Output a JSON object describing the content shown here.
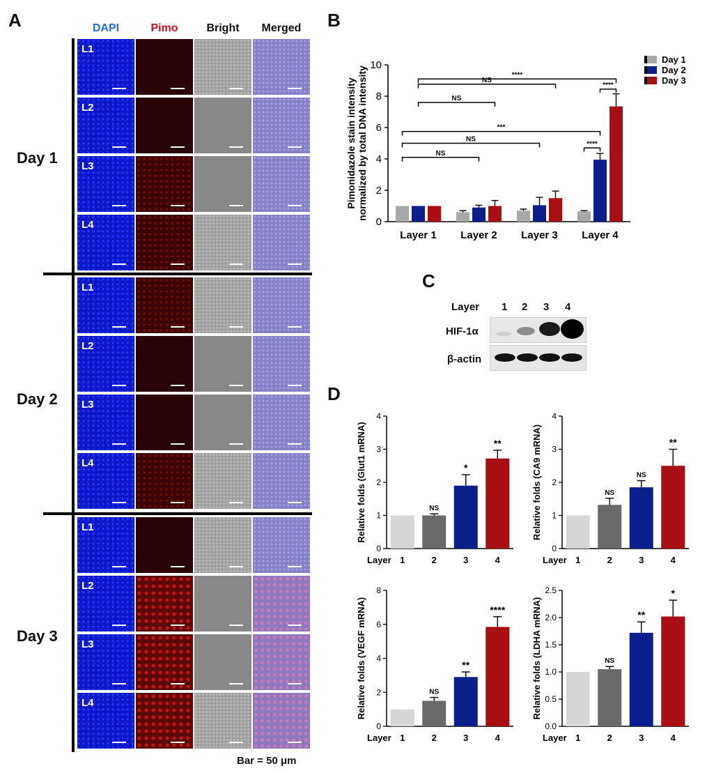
{
  "panels": {
    "a": "A",
    "b": "B",
    "c": "C",
    "d": "D"
  },
  "panel_a": {
    "columns": [
      {
        "label": "DAPI",
        "color": "#1e6fd9"
      },
      {
        "label": "Pimo",
        "color": "#c0141a"
      },
      {
        "label": "Bright",
        "color": "#111111"
      },
      {
        "label": "Merged",
        "color": "#111111"
      }
    ],
    "days": [
      "Day 1",
      "Day 2",
      "Day 3"
    ],
    "layers": [
      "L1",
      "L2",
      "L3",
      "L4"
    ],
    "scale_bar": "Bar = 50 μm"
  },
  "panel_c": {
    "layer_label": "Layer",
    "lanes": [
      "1",
      "2",
      "3",
      "4"
    ],
    "rows": [
      "HIF-1α",
      "β-actin"
    ]
  },
  "chart_data": [
    {
      "id": "B",
      "type": "bar",
      "ylabel_lines": [
        "Pimonidazole stain intensity",
        "normalized by total DNA intensity"
      ],
      "categories": [
        "Layer 1",
        "Layer 2",
        "Layer 3",
        "Layer 4"
      ],
      "ylim": [
        0,
        10
      ],
      "yticks": [
        "0",
        "2",
        "4",
        "6",
        "8",
        "10"
      ],
      "series": [
        {
          "name": "Day 1",
          "color": "#a8a8a8",
          "values": [
            1.0,
            0.6,
            0.7,
            0.65
          ],
          "errors": [
            0,
            0.1,
            0.1,
            0.05
          ]
        },
        {
          "name": "Day 2",
          "color": "#0c1e8c",
          "values": [
            1.0,
            0.9,
            1.05,
            3.95
          ],
          "errors": [
            0,
            0.15,
            0.5,
            0.4
          ]
        },
        {
          "name": "Day 3",
          "color": "#a80e12",
          "values": [
            1.0,
            1.0,
            1.5,
            7.35
          ],
          "errors": [
            0,
            0.35,
            0.45,
            0.8
          ]
        }
      ],
      "significance": [
        "****",
        "NS",
        "NS",
        "****",
        "***",
        "NS",
        "NS",
        "****"
      ]
    },
    {
      "id": "D-Glut1",
      "type": "bar",
      "ylabel": "Relative folds (Glut1 mRNA)",
      "xprefix": "Layer",
      "categories": [
        "1",
        "2",
        "3",
        "4"
      ],
      "ylim": [
        0,
        4
      ],
      "yticks": [
        "0",
        "1",
        "2",
        "3",
        "4"
      ],
      "values": [
        1.0,
        1.0,
        1.9,
        2.72
      ],
      "errors": [
        0,
        0.05,
        0.33,
        0.25
      ],
      "colors": [
        "#d6d6d6",
        "#6a6a6a",
        "#0c1e8c",
        "#a80e12"
      ],
      "labels": [
        "",
        "NS",
        "*",
        "**"
      ]
    },
    {
      "id": "D-CA9",
      "type": "bar",
      "ylabel": "Relative folds (CA9 mRNA)",
      "xprefix": "Layer",
      "categories": [
        "1",
        "2",
        "3",
        "4"
      ],
      "ylim": [
        0,
        4
      ],
      "yticks": [
        "0",
        "1",
        "2",
        "3",
        "4"
      ],
      "values": [
        1.0,
        1.32,
        1.85,
        2.5
      ],
      "errors": [
        0,
        0.2,
        0.2,
        0.5
      ],
      "colors": [
        "#d6d6d6",
        "#6a6a6a",
        "#0c1e8c",
        "#a80e12"
      ],
      "labels": [
        "",
        "NS",
        "NS",
        "**"
      ]
    },
    {
      "id": "D-VEGF",
      "type": "bar",
      "ylabel": "Relative folds (VEGF mRNA)",
      "xprefix": "Layer",
      "categories": [
        "1",
        "2",
        "3",
        "4"
      ],
      "ylim": [
        0,
        8
      ],
      "yticks": [
        "0",
        "2",
        "4",
        "6",
        "8"
      ],
      "values": [
        1.0,
        1.5,
        2.9,
        5.85
      ],
      "errors": [
        0,
        0.2,
        0.3,
        0.6
      ],
      "colors": [
        "#d6d6d6",
        "#6a6a6a",
        "#0c1e8c",
        "#a80e12"
      ],
      "labels": [
        "",
        "NS",
        "**",
        "****"
      ]
    },
    {
      "id": "D-LDHA",
      "type": "bar",
      "ylabel": "Relative folds (LDHA mRNA)",
      "xprefix": "Layer",
      "categories": [
        "1",
        "2",
        "3",
        "4"
      ],
      "ylim": [
        0,
        2.5
      ],
      "yticks": [
        "0.0",
        "0.5",
        "1.0",
        "1.5",
        "2.0",
        "2.5"
      ],
      "values": [
        1.0,
        1.05,
        1.72,
        2.02
      ],
      "errors": [
        0,
        0.05,
        0.2,
        0.3
      ],
      "colors": [
        "#d6d6d6",
        "#6a6a6a",
        "#0c1e8c",
        "#a80e12"
      ],
      "labels": [
        "",
        "NS",
        "**",
        "*"
      ]
    }
  ]
}
